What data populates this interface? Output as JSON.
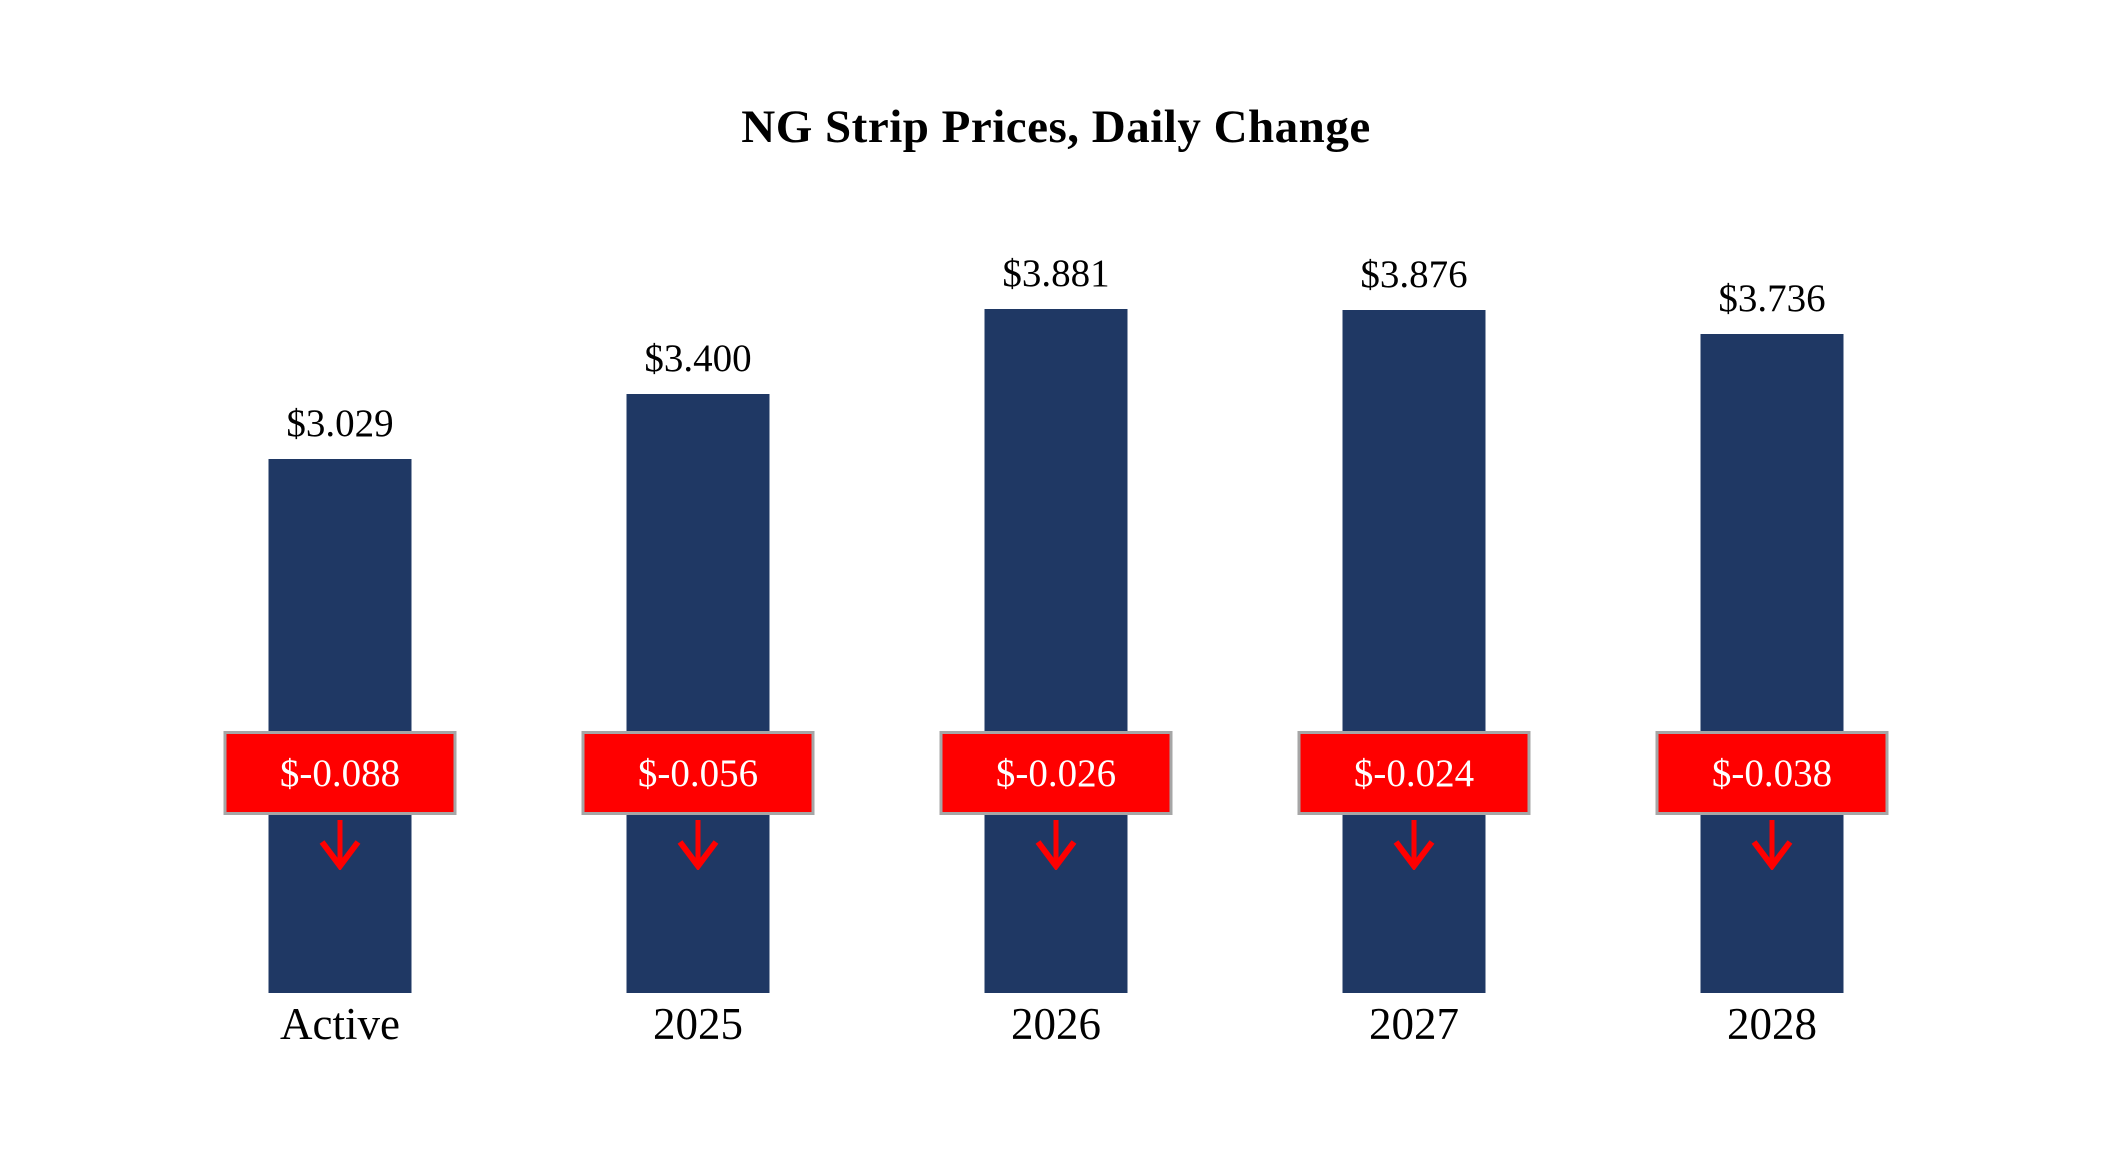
{
  "title": "NG Strip Prices, Daily Change",
  "chart_data": {
    "type": "bar",
    "title": "NG Strip Prices, Daily Change",
    "categories": [
      "Active",
      "2025",
      "2026",
      "2027",
      "2028"
    ],
    "series": [
      {
        "name": "Strip Price",
        "values": [
          3.029,
          3.4,
          3.881,
          3.876,
          3.736
        ]
      },
      {
        "name": "Daily Change",
        "values": [
          -0.088,
          -0.056,
          -0.026,
          -0.024,
          -0.038
        ]
      }
    ],
    "value_labels": [
      "$3.029",
      "$3.400",
      "$3.881",
      "$3.876",
      "$3.736"
    ],
    "change_labels": [
      "$-0.088",
      "$-0.056",
      "$-0.026",
      "$-0.024",
      "$-0.038"
    ],
    "xlabel": "",
    "ylabel": "",
    "ylim": [
      0,
      4.0
    ],
    "grid": false,
    "legend": false,
    "axes_visible": false,
    "colors": {
      "bar": "#1F3864",
      "change_badge": "#FF0000",
      "badge_border": "#A6A6A6",
      "arrow": "#FF0000",
      "badge_text": "#FFFFFF"
    }
  }
}
